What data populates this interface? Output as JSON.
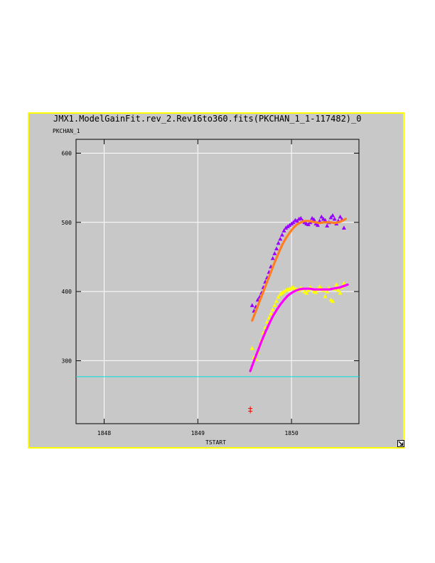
{
  "chart_data": {
    "type": "scatter",
    "title": "JMX1.ModelGainFit.rev_2.Rev16to360.fits(PKCHAN_1_1-117482)_0",
    "ylabel": "PKCHAN_1",
    "xlabel": "TSTART",
    "xlim": [
      1847.7,
      1850.72
    ],
    "ylim": [
      209,
      620
    ],
    "x_ticks": [
      1848,
      1849,
      1850
    ],
    "y_ticks": [
      300,
      400,
      500,
      600
    ],
    "grid": true,
    "reference_line": {
      "y": 277,
      "color": "#00e0e0"
    },
    "series": [
      {
        "marker": "triangle",
        "color": "#9a00ff",
        "x": [
          1849.58,
          1849.6,
          1849.62,
          1849.64,
          1849.66,
          1849.68,
          1849.7,
          1849.72,
          1849.74,
          1849.76,
          1849.78,
          1849.8,
          1849.82,
          1849.84,
          1849.86,
          1849.88,
          1849.9,
          1849.92,
          1849.94,
          1849.96,
          1849.98,
          1850.0,
          1850.02,
          1850.04,
          1850.06,
          1850.08,
          1850.1,
          1850.12,
          1850.14,
          1850.16,
          1850.18,
          1850.2,
          1850.22,
          1850.24,
          1850.26,
          1850.28,
          1850.3,
          1850.32,
          1850.34,
          1850.36,
          1850.38,
          1850.4,
          1850.42,
          1850.44,
          1850.46,
          1850.48,
          1850.5,
          1850.52,
          1850.54,
          1850.56
        ],
        "y": [
          380,
          372,
          378,
          388,
          392,
          398,
          406,
          414,
          420,
          428,
          436,
          448,
          455,
          462,
          470,
          476,
          482,
          488,
          492,
          494,
          496,
          498,
          500,
          503,
          502,
          505,
          506,
          502,
          500,
          498,
          497,
          500,
          506,
          504,
          498,
          496,
          502,
          508,
          505,
          503,
          495,
          500,
          507,
          510,
          505,
          498,
          502,
          508,
          504,
          492
        ]
      },
      {
        "marker": "triangle",
        "color": "#ffff00",
        "x": [
          1849.58,
          1849.6,
          1849.62,
          1849.64,
          1849.66,
          1849.68,
          1849.7,
          1849.72,
          1849.74,
          1849.76,
          1849.78,
          1849.8,
          1849.82,
          1849.84,
          1849.86,
          1849.88,
          1849.9,
          1849.92,
          1849.94,
          1849.96,
          1849.98,
          1850.0,
          1850.02,
          1850.04,
          1850.06,
          1850.08,
          1850.1,
          1850.12,
          1850.14,
          1850.16,
          1850.18,
          1850.2,
          1850.22,
          1850.24,
          1850.26,
          1850.28,
          1850.3,
          1850.32,
          1850.34,
          1850.36,
          1850.38,
          1850.4,
          1850.42,
          1850.44,
          1850.46,
          1850.48,
          1850.5,
          1850.52,
          1850.54,
          1850.56
        ],
        "y": [
          318,
          305,
          302,
          312,
          322,
          330,
          340,
          348,
          356,
          362,
          368,
          374,
          380,
          386,
          392,
          396,
          398,
          400,
          402,
          403,
          404,
          405,
          406,
          404,
          403,
          402,
          405,
          404,
          400,
          398,
          402,
          406,
          404,
          400,
          399,
          403,
          407,
          404,
          402,
          393,
          400,
          405,
          388,
          386,
          404,
          410,
          402,
          398,
          406,
          412
        ]
      },
      {
        "marker": "plus",
        "color": "#ff0000",
        "x": [
          1849.56,
          1849.56
        ],
        "y": [
          231,
          227
        ]
      }
    ],
    "fits": [
      {
        "color": "#ff7f20",
        "x": [
          1849.58,
          1849.62,
          1849.66,
          1849.7,
          1849.74,
          1849.78,
          1849.82,
          1849.86,
          1849.9,
          1849.94,
          1849.98,
          1850.02,
          1850.06,
          1850.1,
          1850.14,
          1850.18,
          1850.22,
          1850.26,
          1850.3,
          1850.34,
          1850.38,
          1850.42,
          1850.46,
          1850.5,
          1850.54,
          1850.58
        ],
        "y": [
          358,
          372,
          386,
          400,
          414,
          428,
          442,
          455,
          467,
          477,
          485,
          492,
          497,
          500,
          502,
          502,
          501,
          500,
          499,
          500,
          500,
          500,
          499,
          500,
          502,
          505
        ]
      },
      {
        "color": "#ff00ff",
        "x": [
          1849.56,
          1849.6,
          1849.64,
          1849.68,
          1849.72,
          1849.76,
          1849.8,
          1849.84,
          1849.88,
          1849.92,
          1849.96,
          1850.0,
          1850.04,
          1850.08,
          1850.12,
          1850.16,
          1850.2,
          1850.24,
          1850.28,
          1850.32,
          1850.36,
          1850.4,
          1850.44,
          1850.48,
          1850.52,
          1850.56,
          1850.6
        ],
        "y": [
          285,
          300,
          314,
          328,
          341,
          353,
          364,
          373,
          381,
          388,
          394,
          398,
          401,
          403,
          404,
          404,
          404,
          403,
          403,
          403,
          403,
          403,
          404,
          405,
          406,
          408,
          410
        ]
      }
    ]
  }
}
